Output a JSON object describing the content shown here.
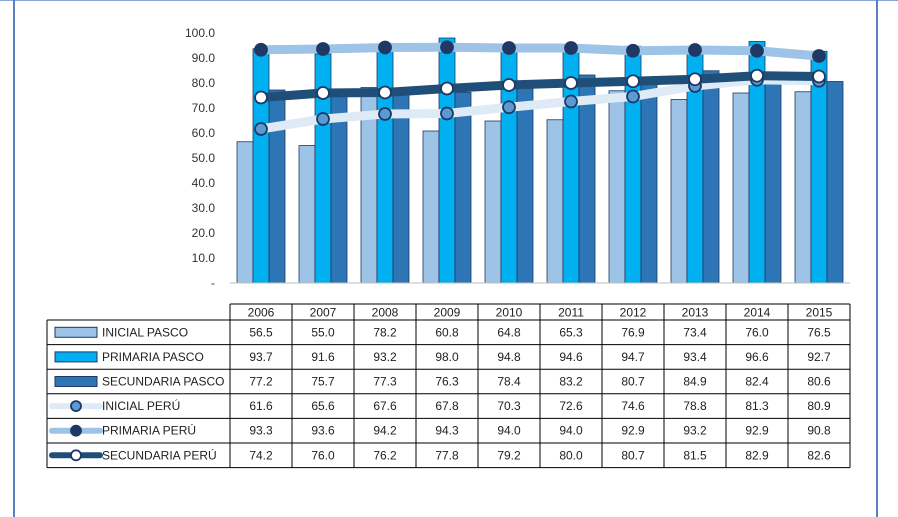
{
  "chart_data": {
    "type": "bar",
    "categories": [
      "2006",
      "2007",
      "2008",
      "2009",
      "2010",
      "2011",
      "2012",
      "2013",
      "2014",
      "2015"
    ],
    "y_ticks": [
      "100.0",
      "90.0",
      "80.0",
      "70.0",
      "60.0",
      "50.0",
      "40.0",
      "30.0",
      "20.0",
      "10.0",
      "-"
    ],
    "ylim": [
      0,
      100
    ],
    "grid": false,
    "legend": "data-table-below",
    "series": [
      {
        "name": "INICIAL PASCO",
        "kind": "bar",
        "color": "#9dc3e6",
        "values": [
          56.5,
          55.0,
          78.2,
          60.8,
          64.8,
          65.3,
          76.9,
          73.4,
          76.0,
          76.5
        ],
        "labels": [
          "56.5",
          "55.0",
          "78.2",
          "60.8",
          "64.8",
          "65.3",
          "76.9",
          "73.4",
          "76.0",
          "76.5"
        ]
      },
      {
        "name": "PRIMARIA PASCO",
        "kind": "bar",
        "color": "#00b0f0",
        "values": [
          93.7,
          91.6,
          93.2,
          98.0,
          94.8,
          94.6,
          94.7,
          93.4,
          96.6,
          92.7
        ],
        "labels": [
          "93.7",
          "91.6",
          "93.2",
          "98.0",
          "94.8",
          "94.6",
          "94.7",
          "93.4",
          "96.6",
          "92.7"
        ]
      },
      {
        "name": "SECUNDARIA PASCO",
        "kind": "bar",
        "color": "#2e75b6",
        "values": [
          77.2,
          75.7,
          77.3,
          76.3,
          78.4,
          83.2,
          80.7,
          84.9,
          82.4,
          80.6
        ],
        "labels": [
          "77.2",
          "75.7",
          "77.3",
          "76.3",
          "78.4",
          "83.2",
          "80.7",
          "84.9",
          "82.4",
          "80.6"
        ]
      },
      {
        "name": "INICIAL PERÚ",
        "kind": "line",
        "color": "#deebf7",
        "marker": "#5b9bd5",
        "values": [
          61.6,
          65.6,
          67.6,
          67.8,
          70.3,
          72.6,
          74.6,
          78.8,
          81.3,
          80.9
        ],
        "labels": [
          "61.6",
          "65.6",
          "67.6",
          "67.8",
          "70.3",
          "72.6",
          "74.6",
          "78.8",
          "81.3",
          "80.9"
        ]
      },
      {
        "name": "PRIMARIA PERÚ",
        "kind": "line",
        "color": "#9dc3e6",
        "marker": "#1f3864",
        "values": [
          93.3,
          93.6,
          94.2,
          94.3,
          94.0,
          94.0,
          92.9,
          93.2,
          92.9,
          90.8
        ],
        "labels": [
          "93.3",
          "93.6",
          "94.2",
          "94.3",
          "94.0",
          "94.0",
          "92.9",
          "93.2",
          "92.9",
          "90.8"
        ]
      },
      {
        "name": "SECUNDARIA PERÚ",
        "kind": "line",
        "color": "#1f4e79",
        "marker": "#ffffff",
        "values": [
          74.2,
          76.0,
          76.2,
          77.8,
          79.2,
          80.0,
          80.7,
          81.5,
          82.9,
          82.6
        ],
        "labels": [
          "74.2",
          "76.0",
          "76.2",
          "77.8",
          "79.2",
          "80.0",
          "80.7",
          "81.5",
          "82.9",
          "82.6"
        ]
      }
    ]
  }
}
